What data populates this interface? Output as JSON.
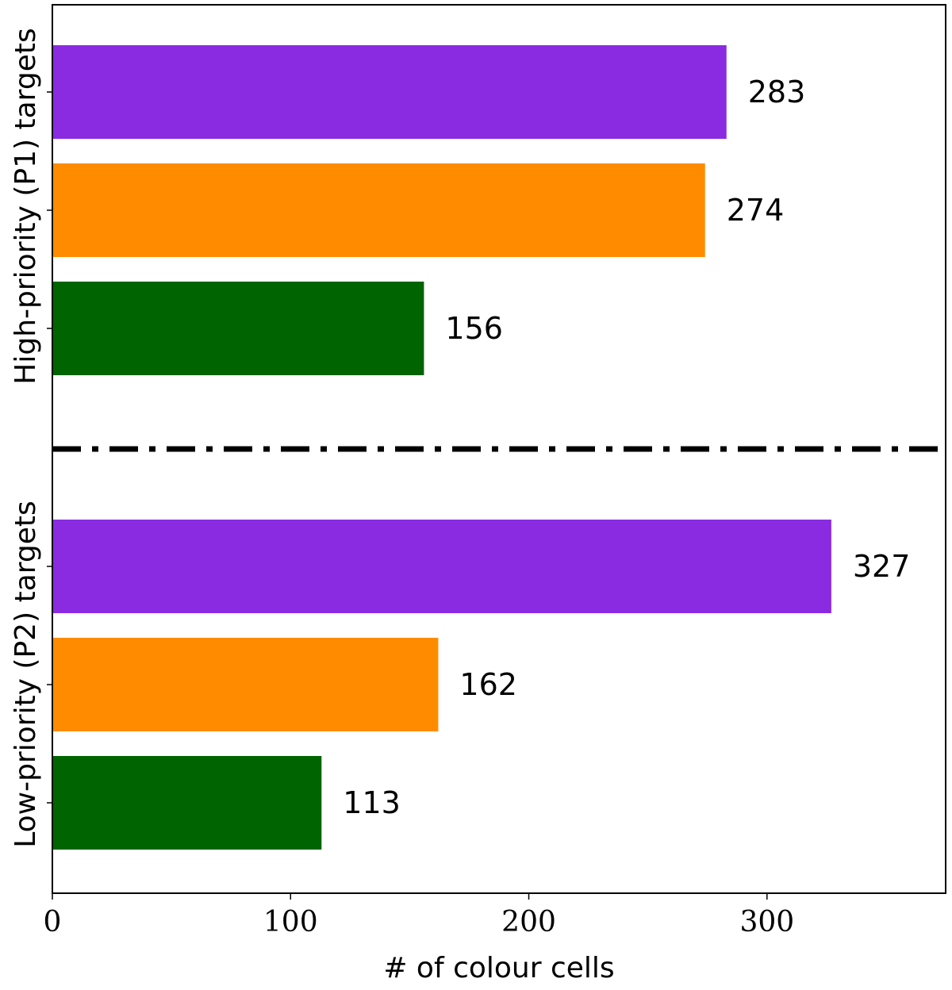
{
  "chart_data": {
    "type": "bar",
    "orientation": "horizontal",
    "xlabel": "# of colour cells",
    "xlim": [
      0,
      375
    ],
    "xticks": [
      0,
      100,
      200,
      300
    ],
    "grid": false,
    "legend": "none",
    "groups": [
      {
        "label": "High-priority (P1) targets",
        "bars": [
          {
            "value": 283,
            "label": "283",
            "color": "#8a2be2"
          },
          {
            "value": 274,
            "label": "274",
            "color": "#ff8c00"
          },
          {
            "value": 156,
            "label": "156",
            "color": "#006400"
          }
        ]
      },
      {
        "label": "Low-priority (P2) targets",
        "bars": [
          {
            "value": 327,
            "label": "327",
            "color": "#8a2be2"
          },
          {
            "value": 162,
            "label": "162",
            "color": "#ff8c00"
          },
          {
            "value": 113,
            "label": "113",
            "color": "#006400"
          }
        ]
      }
    ],
    "separator": {
      "style": "dash-dot",
      "color": "#000000"
    }
  }
}
